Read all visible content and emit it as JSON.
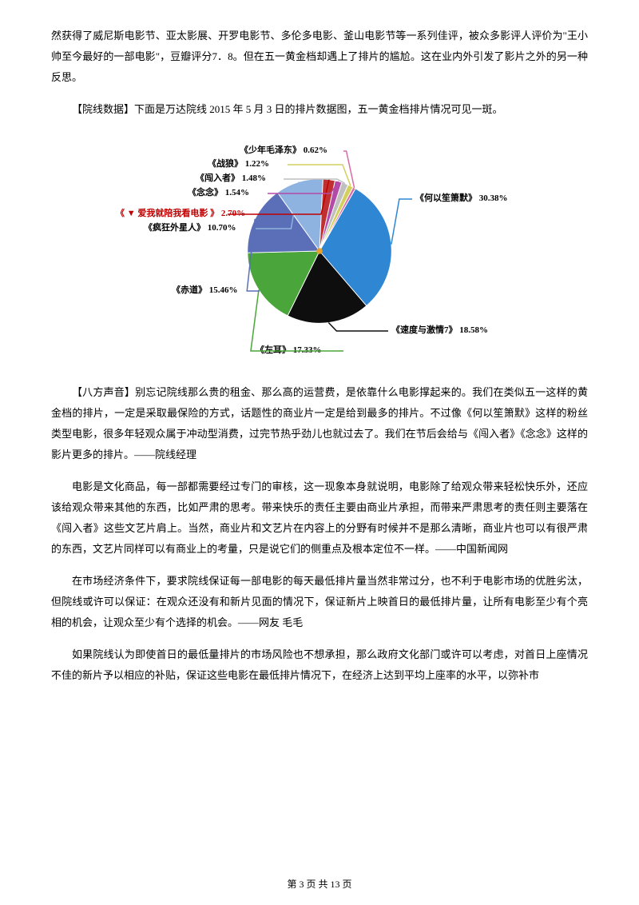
{
  "para1": "然获得了威尼斯电影节、亚太影展、开罗电影节、多伦多电影、釜山电影节等一系列佳评，被众多影评人评价为\"王小帅至今最好的一部电影\"，豆瓣评分7．8。但在五一黄金档却遇上了排片的尴尬。这在业内外引发了影片之外的另一种反思。",
  "para2": "【院线数据】下面是万达院线 2015 年 5 月 3 日的排片数据图，五一黄金档排片情况可见一斑。",
  "para3": "【八方声音】别忘记院线那么贵的租金、那么高的运营费，是依靠什么电影撑起来的。我们在类似五一这样的黄金档的排片，一定是采取最保险的方式，话题性的商业片一定是给到最多的排片。不过像《何以笙箫默》这样的粉丝类型电影，很多年轻观众属于冲动型消费，过完节热乎劲儿也就过去了。我们在节后会给与《闯入者》《念念》这样的影片更多的排片。——院线经理",
  "para4": "电影是文化商品，每一部都需要经过专门的审核，这一现象本身就说明，电影除了给观众带来轻松快乐外，还应该给观众带来其他的东西，比如严肃的思考。带来快乐的责任主要由商业片承担，而带来严肃思考的责任则主要落在《闯入者》这些文艺片肩上。当然，商业片和文艺片在内容上的分野有时候并不是那么清晰，商业片也可以有很严肃的东西，文艺片同样可以有商业上的考量，只是说它们的侧重点及根本定位不一样。——中国新闻网",
  "para5": "在市场经济条件下，要求院线保证每一部电影的每天最低排片量当然非常过分，也不利于电影市场的优胜劣汰，但院线或许可以保证：在观众还没有和新片见面的情况下，保证新片上映首日的最低排片量，让所有电影至少有个亮相的机会，让观众至少有个选择的机会。——网友 毛毛",
  "para6": "如果院线认为即使首日的最低量排片的市场风险也不想承担，那么政府文化部门或许可以考虑，对首日上座情况不佳的新片予以相应的补贴，保证这些电影在最低排片情况下，在经济上达到平均上座率的水平，以弥补市",
  "footer": "第 3 页 共 13 页",
  "chart": {
    "type": "pie",
    "slices": [
      {
        "label": "《何以笙箫默》",
        "pct": "30.38%",
        "value": 30.38,
        "color": "#2f86d2"
      },
      {
        "label": "《速度与激情7》",
        "pct": "18.58%",
        "value": 18.58,
        "color": "#0e0e0e"
      },
      {
        "label": "《左耳》",
        "pct": "17.33%",
        "value": 17.33,
        "color": "#4aa63a"
      },
      {
        "label": "《赤道》",
        "pct": "15.46%",
        "value": 15.46,
        "color": "#5a6fb8"
      },
      {
        "label": "《疯狂外星人》",
        "pct": "10.70%",
        "value": 10.7,
        "color": "#8fb3e0"
      },
      {
        "label": "《 ▼ 爱我就陪我看电影 》",
        "pct": "2.70%",
        "value": 2.7,
        "color": "#c03030",
        "special": true
      },
      {
        "label": "《念念》",
        "pct": "1.54%",
        "value": 1.54,
        "color": "#b34aa8"
      },
      {
        "label": "《闯入者》",
        "pct": "1.48%",
        "value": 1.48,
        "color": "#bfbfbf"
      },
      {
        "label": "《战狼》",
        "pct": "1.22%",
        "value": 1.22,
        "color": "#d4d060"
      },
      {
        "label": "《少年毛泽东》",
        "pct": "0.62%",
        "value": 0.62,
        "color": "#d76aa8"
      }
    ],
    "start_angle_deg": -60,
    "center_dot_color": "#e8a030",
    "background_color": "#ffffff",
    "label_fontsize": 11,
    "label_fontweight": "bold"
  }
}
